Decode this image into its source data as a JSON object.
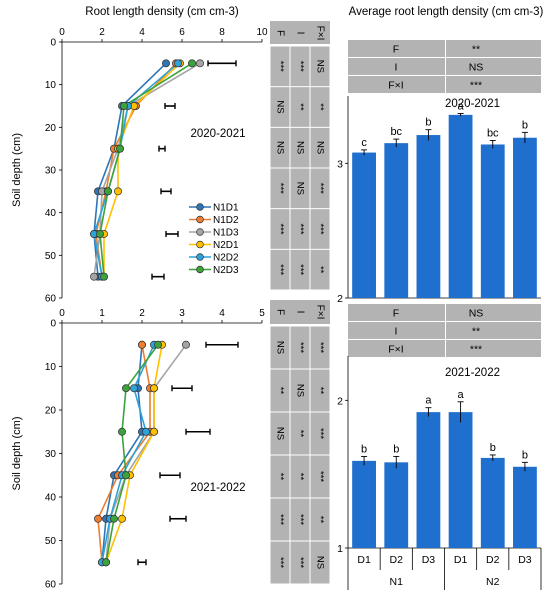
{
  "chart_data": [
    {
      "type": "line",
      "panel": "2020-2021",
      "title": "Root length density (cm cm-3)",
      "xlabel": "",
      "ylabel": "Soil depth (cm)",
      "xlim": [
        0,
        10
      ],
      "ylim": [
        60,
        0
      ],
      "x_ticks": [
        "0",
        "2",
        "4",
        "6",
        "8",
        "10"
      ],
      "y_ticks": [
        "0",
        "10",
        "20",
        "30",
        "40",
        "50",
        "60"
      ],
      "depths": [
        5,
        15,
        25,
        35,
        45,
        55
      ],
      "series": [
        {
          "name": "N1D1",
          "color": "#2E75B6",
          "values": [
            5.2,
            3.0,
            2.6,
            1.8,
            1.6,
            1.8
          ]
        },
        {
          "name": "N1D2",
          "color": "#ED7D31",
          "values": [
            5.7,
            3.7,
            2.6,
            2.2,
            1.7,
            2.0
          ]
        },
        {
          "name": "N1D3",
          "color": "#A5A5A5",
          "values": [
            6.9,
            3.3,
            2.8,
            2.0,
            1.9,
            1.6
          ]
        },
        {
          "name": "N2D1",
          "color": "#FFC000",
          "values": [
            5.9,
            3.6,
            2.8,
            2.8,
            2.1,
            2.1
          ]
        },
        {
          "name": "N2D2",
          "color": "#2EA3D9",
          "values": [
            5.8,
            3.3,
            2.9,
            2.3,
            1.6,
            2.0
          ]
        },
        {
          "name": "N2D3",
          "color": "#3CA33C",
          "values": [
            6.5,
            3.1,
            2.9,
            2.3,
            1.9,
            2.1
          ]
        }
      ],
      "error_bar_x": [
        8.0,
        5.4,
        5.0,
        5.2,
        5.5,
        4.8
      ],
      "error_bar_len": [
        1.4,
        0.5,
        0.3,
        0.5,
        0.6,
        0.6
      ],
      "annotation": "2020-2021",
      "stats_header": [
        "F",
        "I",
        "F×I"
      ],
      "stats_rows": [
        [
          "***",
          "***",
          "NS"
        ],
        [
          "NS",
          "**",
          "**"
        ],
        [
          "NS",
          "NS",
          "NS"
        ],
        [
          "***",
          "NS",
          "***"
        ],
        [
          "***",
          "***",
          "***"
        ],
        [
          "***",
          "***",
          "**"
        ]
      ]
    },
    {
      "type": "line",
      "panel": "2021-2022",
      "title": "",
      "xlabel": "",
      "ylabel": "Soil depth (cm)",
      "xlim": [
        0,
        5
      ],
      "ylim": [
        60,
        0
      ],
      "x_ticks": [
        "0",
        "1",
        "2",
        "3",
        "4",
        "5"
      ],
      "y_ticks": [
        "0",
        "10",
        "20",
        "30",
        "40",
        "50",
        "60"
      ],
      "depths": [
        5,
        15,
        25,
        35,
        45,
        55
      ],
      "series": [
        {
          "name": "N1D1",
          "color": "#2E75B6",
          "values": [
            2.0,
            1.9,
            2.0,
            1.3,
            1.1,
            1.0
          ]
        },
        {
          "name": "N1D2",
          "color": "#ED7D31",
          "values": [
            2.0,
            2.2,
            2.2,
            1.4,
            0.9,
            1.0
          ]
        },
        {
          "name": "N1D3",
          "color": "#A5A5A5",
          "values": [
            3.1,
            2.3,
            2.3,
            1.6,
            1.2,
            1.1
          ]
        },
        {
          "name": "N2D1",
          "color": "#FFC000",
          "values": [
            2.5,
            2.3,
            2.3,
            1.7,
            1.5,
            1.1
          ]
        },
        {
          "name": "N2D2",
          "color": "#2EA3D9",
          "values": [
            2.3,
            1.8,
            2.1,
            1.5,
            1.2,
            1.0
          ]
        },
        {
          "name": "N2D3",
          "color": "#3CA33C",
          "values": [
            2.4,
            1.6,
            1.5,
            1.6,
            1.3,
            1.1
          ]
        }
      ],
      "error_bar_x": [
        4.0,
        3.0,
        3.4,
        2.7,
        2.9,
        2.0
      ],
      "error_bar_len": [
        0.8,
        0.5,
        0.6,
        0.5,
        0.4,
        0.2
      ],
      "annotation": "2021-2022",
      "stats_header": [
        "F",
        "I",
        "F×I"
      ],
      "stats_rows": [
        [
          "NS",
          "***",
          "***"
        ],
        [
          "**",
          "NS",
          "**"
        ],
        [
          "NS",
          "**",
          "***"
        ],
        [
          "**",
          "**",
          "***"
        ],
        [
          "***",
          "***",
          "**"
        ],
        [
          "***",
          "***",
          "NS"
        ]
      ]
    },
    {
      "type": "bar",
      "panel": "2020-2021",
      "title": "Average root length density (cm cm-3)",
      "xlabel": "",
      "ylabel": "",
      "ylim": [
        2,
        3.5
      ],
      "y_ticks": [
        "2",
        "3"
      ],
      "y_tick_values": [
        2,
        3
      ],
      "categories": [
        "N1D1",
        "N1D2",
        "N1D3",
        "N2D1",
        "N2D2",
        "N2D3"
      ],
      "values": [
        3.08,
        3.15,
        3.21,
        3.36,
        3.14,
        3.19
      ],
      "errors": [
        0.02,
        0.03,
        0.04,
        0.01,
        0.03,
        0.04
      ],
      "letters": [
        "c",
        "bc",
        "b",
        "a",
        "bc",
        "b"
      ],
      "color": "#1F6FCF",
      "annotation": "2020-2021",
      "stats": [
        [
          "F",
          "**"
        ],
        [
          "I",
          "NS"
        ],
        [
          "F×I",
          "***"
        ]
      ]
    },
    {
      "type": "bar",
      "panel": "2021-2022",
      "title": "",
      "xlabel": "",
      "ylabel": "",
      "ylim": [
        1,
        2.3
      ],
      "y_ticks": [
        "1",
        "2"
      ],
      "y_tick_values": [
        1,
        2
      ],
      "categories": [
        "N1D1",
        "N1D2",
        "N1D3",
        "N2D1",
        "N2D2",
        "N2D3"
      ],
      "x_tick_labels": [
        "D1",
        "D2",
        "D3",
        "D1",
        "D2",
        "D3"
      ],
      "group_labels": [
        "N1",
        "N2"
      ],
      "values": [
        1.59,
        1.58,
        1.92,
        1.92,
        1.61,
        1.55
      ],
      "errors": [
        0.03,
        0.04,
        0.03,
        0.07,
        0.02,
        0.03
      ],
      "letters": [
        "b",
        "b",
        "a",
        "a",
        "b",
        "b"
      ],
      "color": "#1F6FCF",
      "annotation": "2021-2022",
      "stats": [
        [
          "F",
          "NS"
        ],
        [
          "I",
          "**"
        ],
        [
          "F×I",
          "***"
        ]
      ]
    }
  ]
}
